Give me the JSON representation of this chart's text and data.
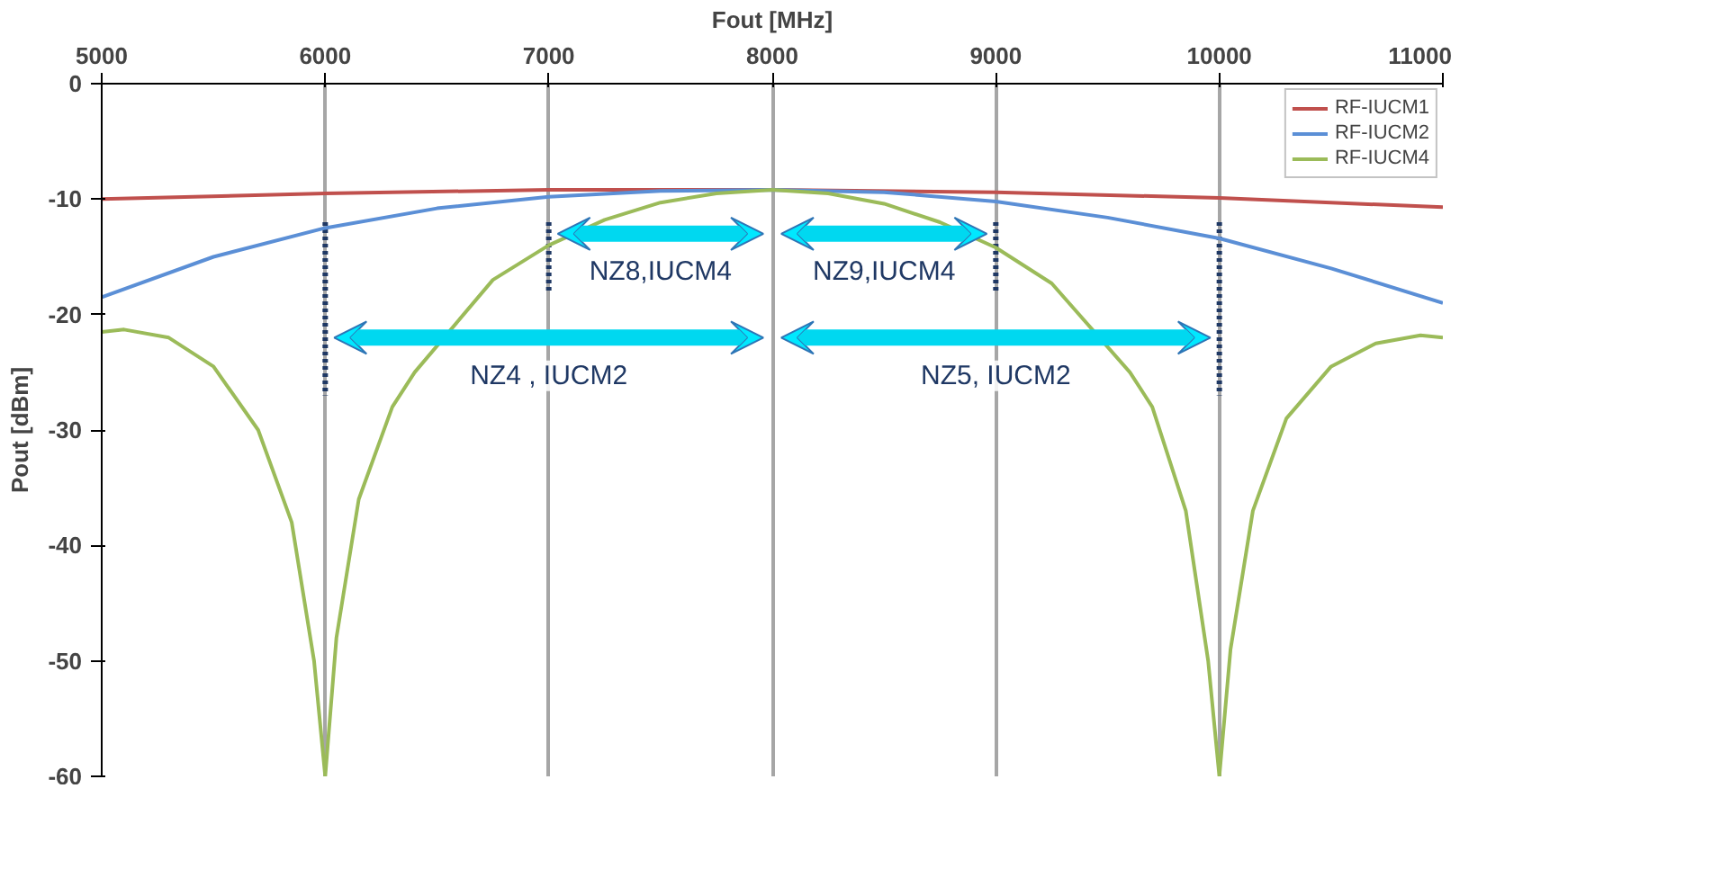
{
  "chart_data": {
    "type": "line",
    "xlabel": "Fout [MHz]",
    "ylabel": "Pout [dBm]",
    "xlim": [
      5000,
      11000
    ],
    "xticks": [
      5000,
      6000,
      7000,
      8000,
      9000,
      10000,
      11000
    ],
    "ylim": [
      -60,
      0
    ],
    "yticks": [
      -60,
      -50,
      -40,
      -30,
      -20,
      -10,
      0
    ],
    "grid": "x",
    "legend": "top right",
    "marker": "none",
    "line_style": "solid",
    "series": [
      {
        "name": "RF-IUCM1",
        "color": "#c0504d",
        "x": [
          5000,
          6000,
          7000,
          8000,
          9000,
          10000,
          11000
        ],
        "values": [
          -10,
          -9.5,
          -9.2,
          -9.2,
          -9.4,
          -9.9,
          -10.7
        ]
      },
      {
        "name": "RF-IUCM2",
        "color": "#5b8fd6",
        "x": [
          5000,
          5500,
          6000,
          6500,
          7000,
          7500,
          8000,
          8500,
          9000,
          9500,
          10000,
          10500,
          11000
        ],
        "values": [
          -18.5,
          -15,
          -12.5,
          -10.8,
          -9.8,
          -9.3,
          -9.2,
          -9.4,
          -10.2,
          -11.6,
          -13.4,
          -16,
          -19
        ]
      },
      {
        "name": "RF-IUCM4",
        "color": "#9bbb59",
        "x": [
          5000,
          5100,
          5300,
          5500,
          5700,
          5850,
          5950,
          6000,
          6050,
          6150,
          6300,
          6400,
          6750,
          7000,
          7250,
          7500,
          7750,
          8000,
          8250,
          8500,
          8750,
          9000,
          9250,
          9600,
          9700,
          9850,
          9950,
          10000,
          10050,
          10150,
          10300,
          10500,
          10700,
          10900,
          11000
        ],
        "values": [
          -21.5,
          -21.3,
          -22,
          -24.5,
          -30,
          -38,
          -50,
          -60,
          -48,
          -36,
          -28,
          -25,
          -17,
          -14,
          -11.8,
          -10.3,
          -9.5,
          -9.2,
          -9.5,
          -10.4,
          -12,
          -14.2,
          -17.3,
          -25,
          -28,
          -37,
          -50,
          -60,
          -49,
          -37,
          -29,
          -24.5,
          -22.5,
          -21.8,
          -22
        ]
      }
    ],
    "ref_lines": [
      {
        "axis": "x",
        "value": 6000,
        "color": "#1f3864",
        "line_style": "dotted"
      },
      {
        "axis": "x",
        "value": 7000,
        "color": "#1f3864",
        "line_style": "dotted"
      },
      {
        "axis": "x",
        "value": 9000,
        "color": "#1f3864",
        "line_style": "dotted"
      },
      {
        "axis": "x",
        "value": 10000,
        "color": "#1f3864",
        "line_style": "dotted"
      }
    ],
    "annotations": [
      "NZ8,IUCM4",
      "NZ9,IUCM4",
      "NZ4 , IUCM2",
      "NZ5, IUCM2"
    ]
  }
}
